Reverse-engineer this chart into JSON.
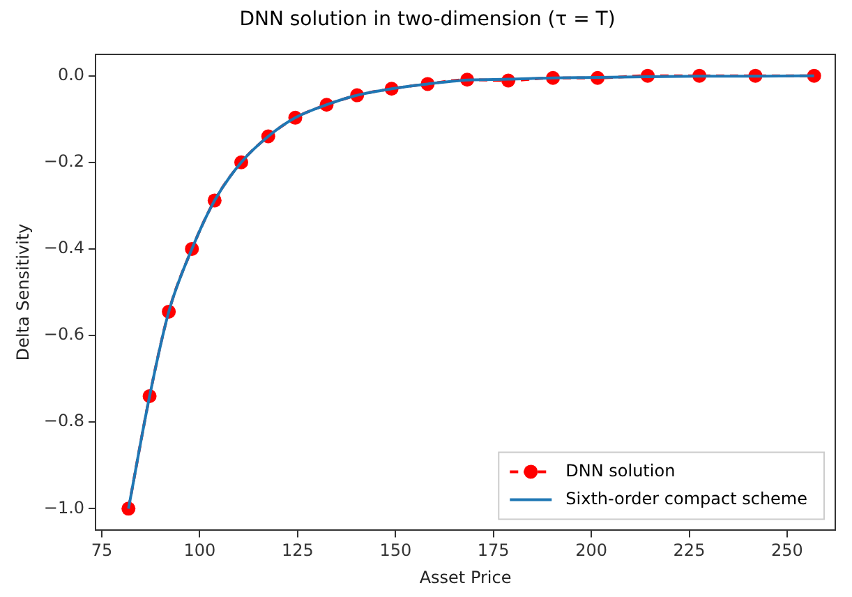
{
  "chart_data": {
    "type": "line",
    "title": "DNN solution in two-dimension (τ = T)",
    "xlabel": "Asset Price",
    "ylabel": "Delta Sensitivity",
    "x": [
      81.8,
      87.2,
      92.1,
      98.0,
      103.8,
      110.6,
      117.5,
      124.4,
      132.4,
      140.2,
      149.0,
      158.2,
      168.3,
      178.8,
      190.2,
      201.6,
      214.4,
      227.6,
      241.9,
      256.9
    ],
    "series": [
      {
        "name": "DNN solution",
        "color": "#ff0000",
        "marker": "circle",
        "line_style": "dashed",
        "values": [
          -1.0,
          -0.74,
          -0.545,
          -0.4,
          -0.288,
          -0.2,
          -0.14,
          -0.097,
          -0.067,
          -0.045,
          -0.03,
          -0.019,
          -0.009,
          -0.011,
          -0.005,
          -0.005,
          0.0,
          0.0,
          0.0,
          0.0
        ]
      },
      {
        "name": "Sixth-order compact scheme",
        "color": "#1f77b4",
        "marker": "none",
        "line_style": "solid",
        "values": [
          -1.0,
          -0.74,
          -0.545,
          -0.4,
          -0.288,
          -0.2,
          -0.14,
          -0.097,
          -0.067,
          -0.045,
          -0.03,
          -0.019,
          -0.01,
          -0.008,
          -0.005,
          -0.004,
          -0.002,
          -0.001,
          -0.001,
          0.0
        ]
      }
    ],
    "xlim": [
      73.4,
      262.3
    ],
    "xticks": [
      75,
      100,
      125,
      150,
      175,
      200,
      225,
      250
    ],
    "ylim": [
      -1.05,
      0.05
    ],
    "yticks": [
      {
        "value": -1.0,
        "label": "−1.0"
      },
      {
        "value": -0.8,
        "label": "−0.8"
      },
      {
        "value": -0.6,
        "label": "−0.6"
      },
      {
        "value": -0.4,
        "label": "−0.4"
      },
      {
        "value": -0.2,
        "label": "−0.2"
      },
      {
        "value": 0.0,
        "label": "0.0"
      }
    ],
    "grid": false,
    "legend": "bottom right"
  }
}
